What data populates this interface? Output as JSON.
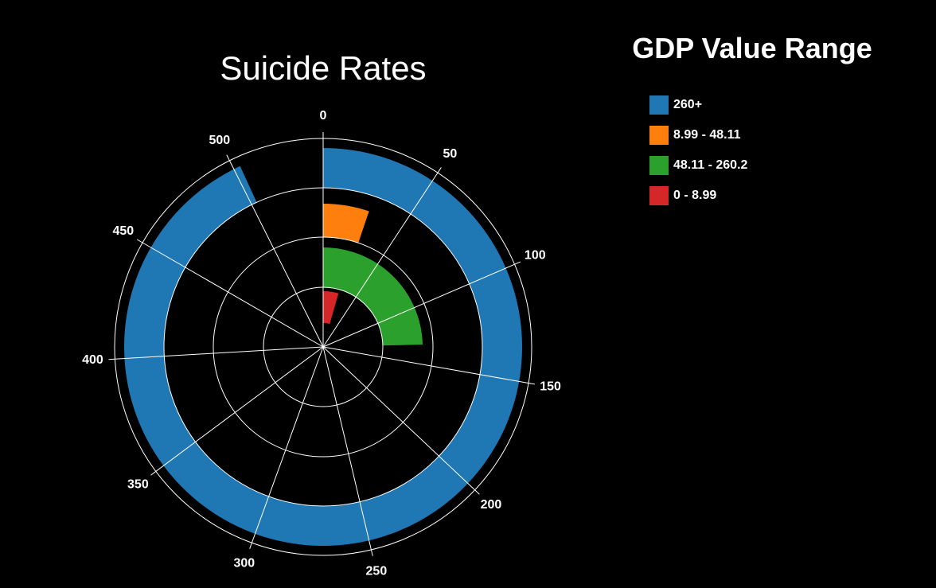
{
  "chart_data": {
    "type": "radial-bar",
    "title": "Suicide Rates",
    "legend_title": "GDP Value Range",
    "angular_axis": {
      "min": 0,
      "max": 540,
      "ticks": [
        0,
        50,
        100,
        150,
        200,
        250,
        300,
        350,
        400,
        450,
        500
      ]
    },
    "grid": true,
    "legend_position": "top-right",
    "series": [
      {
        "name": "260+",
        "value": 503,
        "color": "#1f77b4"
      },
      {
        "name": "8.99 - 48.11",
        "value": 28,
        "color": "#ff7f0e"
      },
      {
        "name": "48.11 - 260.2",
        "value": 133,
        "color": "#2ca02c"
      },
      {
        "name": "0 - 8.99",
        "value": 24,
        "color": "#d62728"
      }
    ]
  }
}
